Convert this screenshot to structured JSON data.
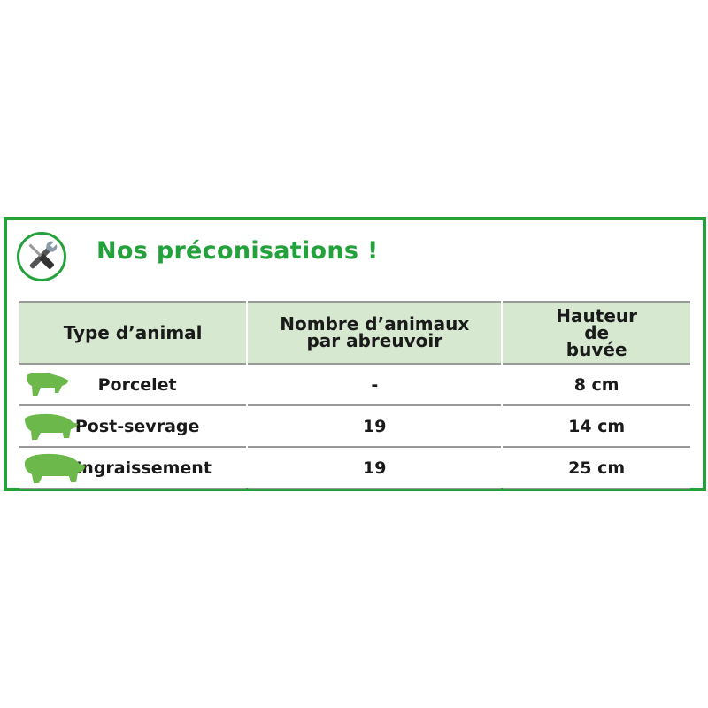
{
  "title": "Nos préconisations !",
  "icon": "tools-icon",
  "colors": {
    "accent": "#23a23b",
    "header_bg": "#d6e8d0",
    "pig": "#6cb84a"
  },
  "table": {
    "headers": [
      "Type d’animal",
      "Nombre d’animaux par abreuvoir",
      "Hauteur de buvée"
    ],
    "rows": [
      {
        "animal": "Porcelet",
        "count": "-",
        "height": "8 cm",
        "icon": "piglet-icon"
      },
      {
        "animal": "Post-sevrage",
        "count": "19",
        "height": "14 cm",
        "icon": "weaner-pig-icon"
      },
      {
        "animal": "Engraissement",
        "count": "19",
        "height": "25 cm",
        "icon": "fattening-pig-icon"
      }
    ]
  }
}
